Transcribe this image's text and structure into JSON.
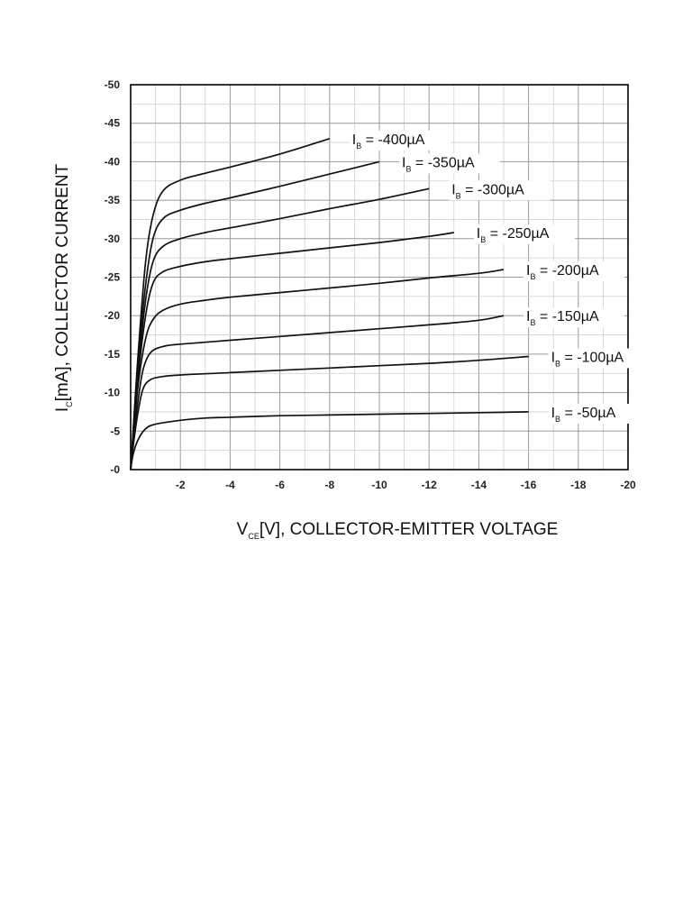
{
  "chart_data": {
    "type": "line",
    "xlabel_main": "V",
    "xlabel_sub": "CE",
    "xlabel_rest": "[V], COLLECTOR-EMITTER VOLTAGE",
    "ylabel_main": "I",
    "ylabel_sub": "C",
    "ylabel_rest": "[mA], COLLECTOR CURRENT",
    "xlim": [
      0,
      -20
    ],
    "ylim": [
      0,
      -50
    ],
    "grid": true,
    "x_ticks": [
      "-2",
      "-4",
      "-6",
      "-8",
      "-10",
      "-12",
      "-14",
      "-16",
      "-18",
      "-20"
    ],
    "y_ticks": [
      "-0",
      "-5",
      "-10",
      "-15",
      "-20",
      "-25",
      "-30",
      "-35",
      "-40",
      "-45",
      "-50"
    ],
    "series": [
      {
        "name": "-400µA",
        "label_main": "I",
        "label_sub": "B",
        "label_rest": " = -400µA",
        "points": [
          [
            0,
            0
          ],
          [
            -0.1,
            -5
          ],
          [
            -0.3,
            -15
          ],
          [
            -0.6,
            -27
          ],
          [
            -0.9,
            -33
          ],
          [
            -1.3,
            -36.2
          ],
          [
            -2,
            -37.6
          ],
          [
            -3,
            -38.5
          ],
          [
            -4,
            -39.3
          ],
          [
            -6,
            -41
          ],
          [
            -8,
            -43
          ]
        ]
      },
      {
        "name": "-350µA",
        "label_main": "I",
        "label_sub": "B",
        "label_rest": " = -350µA",
        "points": [
          [
            0,
            0
          ],
          [
            -0.1,
            -5
          ],
          [
            -0.3,
            -14
          ],
          [
            -0.6,
            -24
          ],
          [
            -0.9,
            -30
          ],
          [
            -1.3,
            -32.6
          ],
          [
            -2,
            -33.7
          ],
          [
            -3,
            -34.6
          ],
          [
            -4,
            -35.3
          ],
          [
            -6,
            -36.8
          ],
          [
            -8,
            -38.4
          ],
          [
            -10,
            -40
          ]
        ]
      },
      {
        "name": "-300µA",
        "label_main": "I",
        "label_sub": "B",
        "label_rest": " = -300µA",
        "points": [
          [
            0,
            0
          ],
          [
            -0.1,
            -4.5
          ],
          [
            -0.3,
            -13
          ],
          [
            -0.6,
            -22
          ],
          [
            -0.9,
            -27
          ],
          [
            -1.3,
            -29
          ],
          [
            -2,
            -30
          ],
          [
            -3,
            -30.8
          ],
          [
            -4,
            -31.4
          ],
          [
            -6,
            -32.6
          ],
          [
            -8,
            -33.9
          ],
          [
            -10,
            -35.1
          ],
          [
            -12,
            -36.5
          ]
        ]
      },
      {
        "name": "-250µA",
        "label_main": "I",
        "label_sub": "B",
        "label_rest": " = -250µA",
        "points": [
          [
            0,
            0
          ],
          [
            -0.1,
            -4
          ],
          [
            -0.3,
            -12
          ],
          [
            -0.6,
            -20
          ],
          [
            -0.9,
            -24.2
          ],
          [
            -1.3,
            -25.7
          ],
          [
            -2,
            -26.4
          ],
          [
            -3,
            -27
          ],
          [
            -4,
            -27.4
          ],
          [
            -6,
            -28.1
          ],
          [
            -8,
            -28.8
          ],
          [
            -10,
            -29.5
          ],
          [
            -12,
            -30.3
          ],
          [
            -13,
            -30.8
          ]
        ]
      },
      {
        "name": "-200µA",
        "label_main": "I",
        "label_sub": "B",
        "label_rest": " = -200µA",
        "points": [
          [
            0,
            0
          ],
          [
            -0.1,
            -4
          ],
          [
            -0.3,
            -11
          ],
          [
            -0.6,
            -17
          ],
          [
            -0.9,
            -19.5
          ],
          [
            -1.3,
            -20.7
          ],
          [
            -2,
            -21.5
          ],
          [
            -3,
            -22
          ],
          [
            -4,
            -22.4
          ],
          [
            -6,
            -23
          ],
          [
            -8,
            -23.6
          ],
          [
            -10,
            -24.2
          ],
          [
            -12,
            -24.9
          ],
          [
            -14,
            -25.5
          ],
          [
            -15,
            -26
          ]
        ]
      },
      {
        "name": "-150µA",
        "label_main": "I",
        "label_sub": "B",
        "label_rest": " = -150µA",
        "points": [
          [
            0,
            0
          ],
          [
            -0.1,
            -3.5
          ],
          [
            -0.3,
            -9
          ],
          [
            -0.5,
            -13
          ],
          [
            -0.8,
            -15.2
          ],
          [
            -1.3,
            -16
          ],
          [
            -2,
            -16.3
          ],
          [
            -4,
            -16.8
          ],
          [
            -6,
            -17.3
          ],
          [
            -8,
            -17.8
          ],
          [
            -10,
            -18.3
          ],
          [
            -12,
            -18.8
          ],
          [
            -14,
            -19.4
          ],
          [
            -15,
            -20
          ]
        ]
      },
      {
        "name": "-100µA",
        "label_main": "I",
        "label_sub": "B",
        "label_rest": " = -100µA",
        "points": [
          [
            0,
            0
          ],
          [
            -0.1,
            -3
          ],
          [
            -0.3,
            -7.5
          ],
          [
            -0.5,
            -10.5
          ],
          [
            -0.8,
            -11.7
          ],
          [
            -1.3,
            -12.1
          ],
          [
            -2,
            -12.3
          ],
          [
            -4,
            -12.6
          ],
          [
            -6,
            -12.9
          ],
          [
            -8,
            -13.2
          ],
          [
            -10,
            -13.5
          ],
          [
            -12,
            -13.8
          ],
          [
            -14,
            -14.2
          ],
          [
            -16,
            -14.7
          ]
        ]
      },
      {
        "name": "-50µA",
        "label_main": "I",
        "label_sub": "B",
        "label_rest": " = -50µA",
        "points": [
          [
            0,
            0
          ],
          [
            -0.1,
            -2
          ],
          [
            -0.3,
            -3.9
          ],
          [
            -0.6,
            -5.3
          ],
          [
            -1,
            -5.9
          ],
          [
            -2,
            -6.4
          ],
          [
            -3,
            -6.7
          ],
          [
            -4,
            -6.8
          ],
          [
            -6,
            -7
          ],
          [
            -8,
            -7.1
          ],
          [
            -10,
            -7.2
          ],
          [
            -12,
            -7.3
          ],
          [
            -14,
            -7.4
          ],
          [
            -16,
            -7.5
          ]
        ]
      }
    ]
  }
}
